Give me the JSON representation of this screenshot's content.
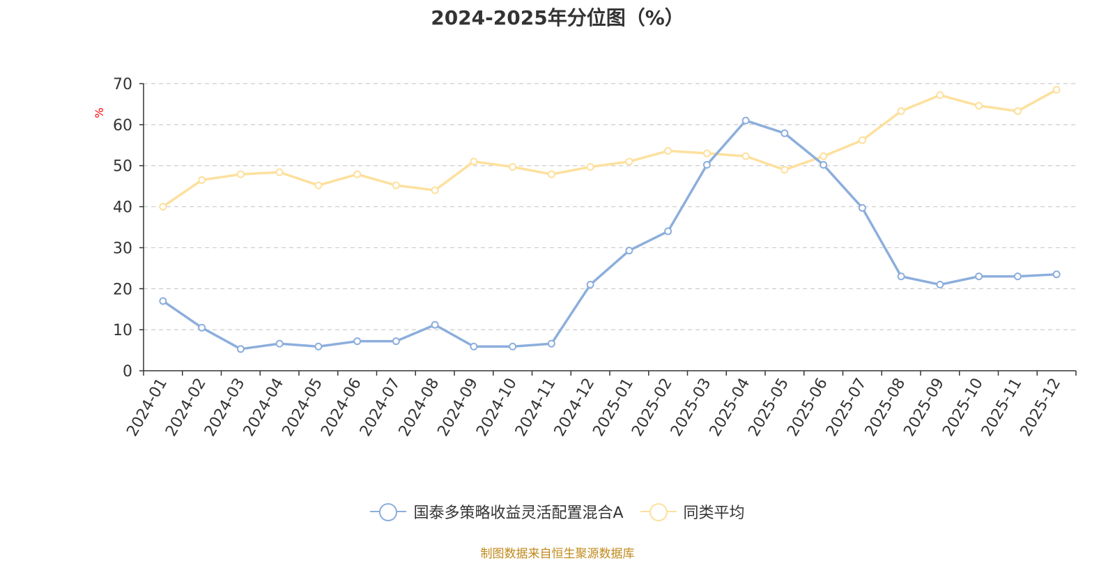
{
  "title": "2024-2025年分位图（%）",
  "source_note": "制图数据来自恒生聚源数据库",
  "colors": {
    "series_fund": "#8caedc",
    "series_avg": "#fde09d",
    "grid": "#cccccc",
    "axis": "#333333",
    "ylabel": "#ff0000",
    "source": "#c08a1c"
  },
  "chart_data": {
    "type": "line",
    "title": "2024-2025年分位图（%）",
    "xlabel": "",
    "ylabel": "%",
    "ylim": [
      0,
      70
    ],
    "yticks": [
      0,
      10,
      20,
      30,
      40,
      50,
      60,
      70
    ],
    "grid": true,
    "legend_position": "bottom-center",
    "categories": [
      "2024-01",
      "2024-02",
      "2024-03",
      "2024-04",
      "2024-05",
      "2024-06",
      "2024-07",
      "2024-08",
      "2024-09",
      "2024-10",
      "2024-11",
      "2024-12",
      "2025-01",
      "2025-02",
      "2025-03",
      "2025-04",
      "2025-05",
      "2025-06",
      "2025-07",
      "2025-08",
      "2025-09",
      "2025-10",
      "2025-11",
      "2025-12"
    ],
    "series": [
      {
        "name": "国泰多策略收益灵活配置混合A",
        "color": "#8caedc",
        "values": [
          17.0,
          10.5,
          5.3,
          6.6,
          5.9,
          7.2,
          7.2,
          11.2,
          5.9,
          5.9,
          6.6,
          21.0,
          29.3,
          34.0,
          50.2,
          61.0,
          57.9,
          50.2,
          39.7,
          23.0,
          21.0,
          23.0,
          23.0,
          23.5
        ]
      },
      {
        "name": "同类平均",
        "color": "#fde09d",
        "values": [
          40.0,
          46.5,
          47.9,
          48.4,
          45.2,
          47.9,
          45.2,
          44.0,
          51.0,
          49.7,
          47.9,
          49.7,
          51.0,
          53.6,
          53.0,
          52.3,
          49.0,
          52.3,
          56.2,
          63.3,
          67.2,
          64.6,
          63.3,
          68.5
        ]
      }
    ]
  }
}
